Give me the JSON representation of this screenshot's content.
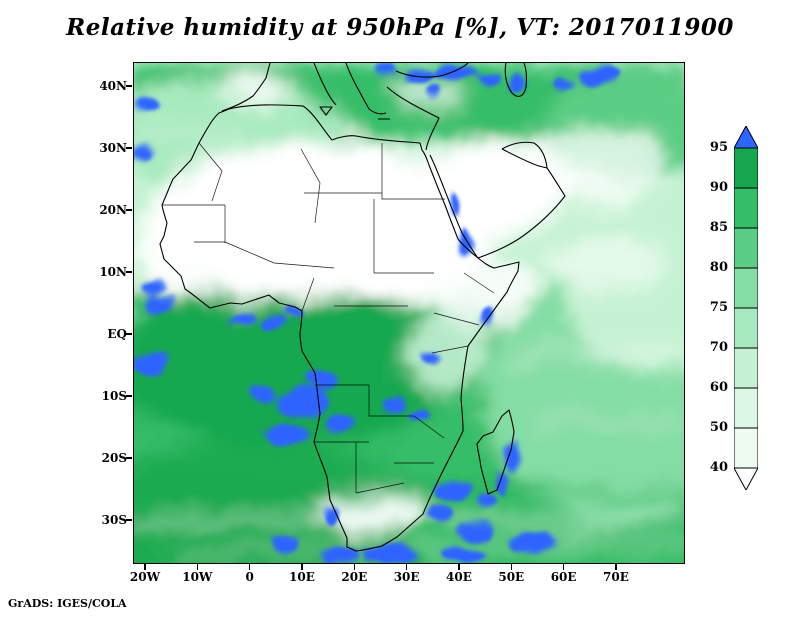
{
  "page": {
    "title": "Relative humidity at 950hPa [%], VT: 2017011900",
    "attribution": "GrADS: IGES/COLA"
  },
  "chart_data": {
    "type": "heatmap",
    "title": "Relative humidity at 950hPa [%], VT: 2017011900",
    "variable": "Relative humidity",
    "level": "950hPa",
    "units": "%",
    "valid_time": "2017011900",
    "region": "Africa, Mediterranean and Middle East",
    "x_axis": {
      "tick_labels": [
        "20W",
        "10W",
        "0",
        "10E",
        "20E",
        "30E",
        "40E",
        "50E",
        "60E",
        "70E"
      ]
    },
    "y_axis": {
      "tick_labels": [
        "40N",
        "30N",
        "20N",
        "10N",
        "EQ",
        "10S",
        "20S",
        "30S"
      ]
    },
    "colorbar": {
      "orientation": "vertical",
      "position": "right",
      "tick_labels_top_to_bottom": [
        "95",
        "90",
        "85",
        "80",
        "75",
        "70",
        "60",
        "50",
        "40"
      ],
      "segments_top_to_bottom": [
        {
          "range": "> 95",
          "color": "#2e64ff"
        },
        {
          "range": "90-95",
          "color": "#17a84f"
        },
        {
          "range": "85-90",
          "color": "#36bd67"
        },
        {
          "range": "80-85",
          "color": "#5ccd84"
        },
        {
          "range": "75-80",
          "color": "#84dda4"
        },
        {
          "range": "70-75",
          "color": "#a8eabf"
        },
        {
          "range": "60-70",
          "color": "#c6f2d3"
        },
        {
          "range": "50-60",
          "color": "#dcf7e3"
        },
        {
          "range": "40-50",
          "color": "#edfbf0"
        },
        {
          "range": "< 40",
          "color": "#ffffff"
        }
      ]
    }
  }
}
